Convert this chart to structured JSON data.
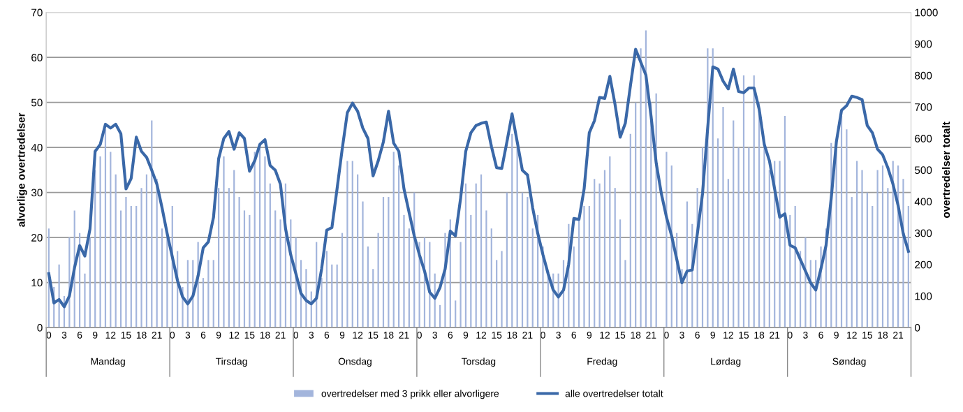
{
  "chart_data": {
    "type": "bar",
    "ylabel": "alvorlige overtredelser",
    "y2label": "overtredelser totalt",
    "categories": [
      "0",
      null,
      null,
      "3",
      null,
      null,
      "6",
      null,
      null,
      "9",
      null,
      null,
      "12",
      null,
      null,
      "15",
      null,
      null,
      "18",
      null,
      null,
      "21",
      null,
      null,
      "0",
      null,
      null,
      "3",
      null,
      null,
      "6",
      null,
      null,
      "9",
      null,
      null,
      "12",
      null,
      null,
      "15",
      null,
      null,
      "18",
      null,
      null,
      "21",
      null,
      null,
      "0",
      null,
      null,
      "3",
      null,
      null,
      "6",
      null,
      null,
      "9",
      null,
      null,
      "12",
      null,
      null,
      "15",
      null,
      null,
      "18",
      null,
      null,
      "21",
      null,
      null,
      "0",
      null,
      null,
      "3",
      null,
      null,
      "6",
      null,
      null,
      "9",
      null,
      null,
      "12",
      null,
      null,
      "15",
      null,
      null,
      "18",
      null,
      null,
      "21",
      null,
      null,
      "0",
      null,
      null,
      "3",
      null,
      null,
      "6",
      null,
      null,
      "9",
      null,
      null,
      "12",
      null,
      null,
      "15",
      null,
      null,
      "18",
      null,
      null,
      "21",
      null,
      null,
      "0",
      null,
      null,
      "3",
      null,
      null,
      "6",
      null,
      null,
      "9",
      null,
      null,
      "12",
      null,
      null,
      "15",
      null,
      null,
      "18",
      null,
      null,
      "21",
      null,
      null,
      "0",
      null,
      null,
      "3",
      null,
      null,
      "6",
      null,
      null,
      "9",
      null,
      null,
      "12",
      null,
      null,
      "15",
      null,
      null,
      "18",
      null,
      null,
      "21",
      null,
      null
    ],
    "series": [
      {
        "name": "overtredelser med 3 prikk eller alvorligere",
        "color": "#a3b5dc",
        "values": [
          22,
          9,
          14,
          7,
          20,
          26,
          21,
          12,
          20,
          35,
          38,
          44,
          39,
          34,
          26,
          29,
          27,
          27,
          31,
          34,
          46,
          33,
          22,
          20,
          27,
          17,
          9,
          15,
          15,
          19,
          11,
          15,
          15,
          31,
          38,
          31,
          35,
          29,
          26,
          25,
          39,
          40,
          38,
          32,
          26,
          24,
          32,
          24,
          20,
          15,
          13,
          8,
          19,
          11,
          17,
          14,
          14,
          21,
          37,
          37,
          34,
          28,
          18,
          13,
          21,
          29,
          29,
          39,
          36,
          25,
          22,
          30,
          19,
          20,
          19,
          12,
          5,
          21,
          24,
          6,
          19,
          32,
          25,
          32,
          34,
          26,
          22,
          15,
          17,
          30,
          43,
          40,
          30,
          29,
          22,
          25,
          18,
          12,
          12,
          12,
          15,
          23,
          18,
          24,
          27,
          27,
          33,
          32,
          35,
          38,
          31,
          24,
          15,
          43,
          50,
          62,
          66,
          50,
          52,
          null,
          39,
          36,
          21,
          13,
          28,
          23,
          31,
          40,
          62,
          62,
          42,
          49,
          33,
          46,
          40,
          56,
          40,
          56,
          50,
          40,
          35,
          37,
          37,
          47,
          25,
          27,
          17,
          20,
          15,
          15,
          18,
          22,
          41,
          40,
          47,
          44,
          29,
          37,
          35,
          30,
          27,
          35,
          36,
          31,
          37,
          36,
          33,
          27
        ]
      },
      {
        "name": "alle overtredelser totalt",
        "type": "line",
        "axis": "y2",
        "color": "#3a68a8",
        "values": [
          171,
          78,
          89,
          66,
          100,
          190,
          260,
          227,
          313,
          559,
          581,
          645,
          633,
          645,
          615,
          440,
          473,
          604,
          559,
          540,
          499,
          455,
          380,
          298,
          224,
          149,
          97,
          75,
          100,
          164,
          253,
          272,
          350,
          536,
          600,
          622,
          566,
          618,
          600,
          496,
          529,
          581,
          596,
          514,
          499,
          455,
          313,
          231,
          171,
          108,
          86,
          75,
          93,
          186,
          309,
          317,
          440,
          566,
          682,
          712,
          686,
          633,
          600,
          481,
          529,
          589,
          686,
          585,
          559,
          440,
          365,
          291,
          231,
          179,
          112,
          93,
          127,
          186,
          306,
          291,
          410,
          559,
          618,
          641,
          648,
          652,
          574,
          507,
          505,
          589,
          678,
          589,
          499,
          484,
          380,
          298,
          231,
          171,
          119,
          97,
          119,
          201,
          346,
          343,
          440,
          618,
          656,
          730,
          727,
          797,
          708,
          604,
          648,
          768,
          883,
          842,
          801,
          671,
          522,
          425,
          350,
          291,
          216,
          142,
          179,
          183,
          298,
          425,
          633,
          827,
          820,
          782,
          757,
          820,
          749,
          745,
          760,
          760,
          693,
          581,
          529,
          440,
          350,
          361,
          261,
          253,
          216,
          179,
          142,
          119,
          186,
          261,
          410,
          589,
          689,
          704,
          734,
          730,
          723,
          641,
          618,
          566,
          548,
          507,
          455,
          387,
          298,
          242
        ]
      }
    ],
    "annotations": [
      "Mandag",
      "Tirsdag",
      "Onsdag",
      "Torsdag",
      "Fredag",
      "Lørdag",
      "Søndag"
    ],
    "ylim": [
      0,
      70
    ],
    "yticks": [
      0,
      10,
      20,
      30,
      40,
      50,
      60,
      70
    ],
    "y2lim": [
      0,
      1000
    ],
    "y2ticks": [
      0,
      100,
      200,
      300,
      400,
      500,
      600,
      700,
      800,
      900,
      1000
    ],
    "grid": "y",
    "legend": "bottom",
    "line_style": "solid",
    "marker": "none"
  }
}
